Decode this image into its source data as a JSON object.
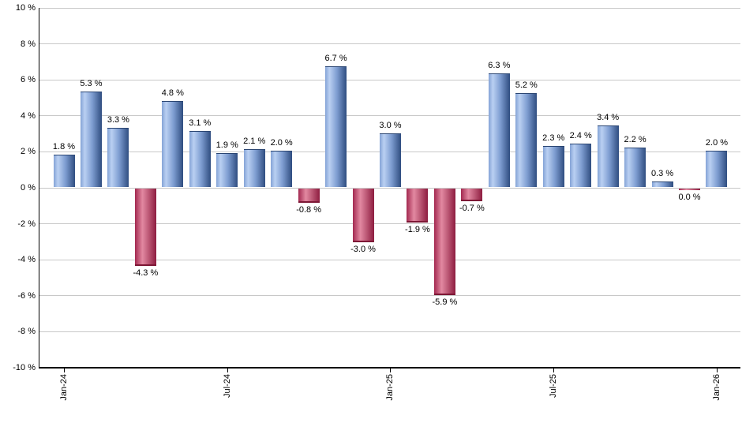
{
  "chart_data": {
    "type": "bar",
    "title": "",
    "xlabel": "",
    "ylabel": "",
    "ylim": [
      -10,
      10
    ],
    "ytick_step": 2,
    "grid": true,
    "legend": false,
    "y_tick_labels": [
      "10 %",
      "8 %",
      "6 %",
      "4 %",
      "2 %",
      "0 %",
      "-2 %",
      "-4 %",
      "-6 %",
      "-8 %",
      "-10 %"
    ],
    "y_tick_values": [
      10,
      8,
      6,
      4,
      2,
      0,
      -2,
      -4,
      -6,
      -8,
      -10
    ],
    "x_tick_labels": [
      "Jan-24",
      "Jul-24",
      "Jan-25",
      "Jul-25",
      "Jan-26"
    ],
    "x_tick_bar_indices": [
      0,
      6,
      12,
      18,
      24
    ],
    "n_bars": 25,
    "bars": [
      {
        "label": "1.8 %",
        "value": 1.8,
        "color": "positive"
      },
      {
        "label": "5.3 %",
        "value": 5.3,
        "color": "positive"
      },
      {
        "label": "3.3 %",
        "value": 3.3,
        "color": "positive"
      },
      {
        "label": "-4.3 %",
        "value": -4.3,
        "color": "negative"
      },
      {
        "label": "4.8 %",
        "value": 4.8,
        "color": "positive"
      },
      {
        "label": "3.1 %",
        "value": 3.1,
        "color": "positive"
      },
      {
        "label": "1.9 %",
        "value": 1.9,
        "color": "positive"
      },
      {
        "label": "2.1 %",
        "value": 2.1,
        "color": "positive"
      },
      {
        "label": "2.0 %",
        "value": 2.0,
        "color": "positive"
      },
      {
        "label": "-0.8 %",
        "value": -0.8,
        "color": "negative"
      },
      {
        "label": "6.7 %",
        "value": 6.7,
        "color": "positive"
      },
      {
        "label": "-3.0 %",
        "value": -3.0,
        "color": "negative"
      },
      {
        "label": "3.0 %",
        "value": 3.0,
        "color": "positive"
      },
      {
        "label": "-1.9 %",
        "value": -1.9,
        "color": "negative"
      },
      {
        "label": "-5.9 %",
        "value": -5.9,
        "color": "negative"
      },
      {
        "label": "-0.7 %",
        "value": -0.7,
        "color": "negative"
      },
      {
        "label": "6.3 %",
        "value": 6.3,
        "color": "positive"
      },
      {
        "label": "5.2 %",
        "value": 5.2,
        "color": "positive"
      },
      {
        "label": "2.3 %",
        "value": 2.3,
        "color": "positive"
      },
      {
        "label": "2.4 %",
        "value": 2.4,
        "color": "positive"
      },
      {
        "label": "3.4 %",
        "value": 3.4,
        "color": "positive"
      },
      {
        "label": "2.2 %",
        "value": 2.2,
        "color": "positive"
      },
      {
        "label": "0.3 %",
        "value": 0.3,
        "color": "positive"
      },
      {
        "label": "0.0 %",
        "value": 0.0,
        "color": "negative"
      },
      {
        "label": "2.0 %",
        "value": 2.0,
        "color": "positive"
      }
    ],
    "colors": {
      "positive_edge_left": "#84a3d6",
      "positive_light": "#bad0f2",
      "positive_mid": "#7e9dd1",
      "positive_dark": "#2f4d80",
      "positive_cap": "#2a4572",
      "negative_edge_left": "#a32950",
      "negative_light": "#e289a1",
      "negative_dark": "#8e1d40",
      "negative_cap": "#7d1735",
      "gridline": "#c8c8c8",
      "axis": "#000000",
      "text": "#000000"
    }
  }
}
